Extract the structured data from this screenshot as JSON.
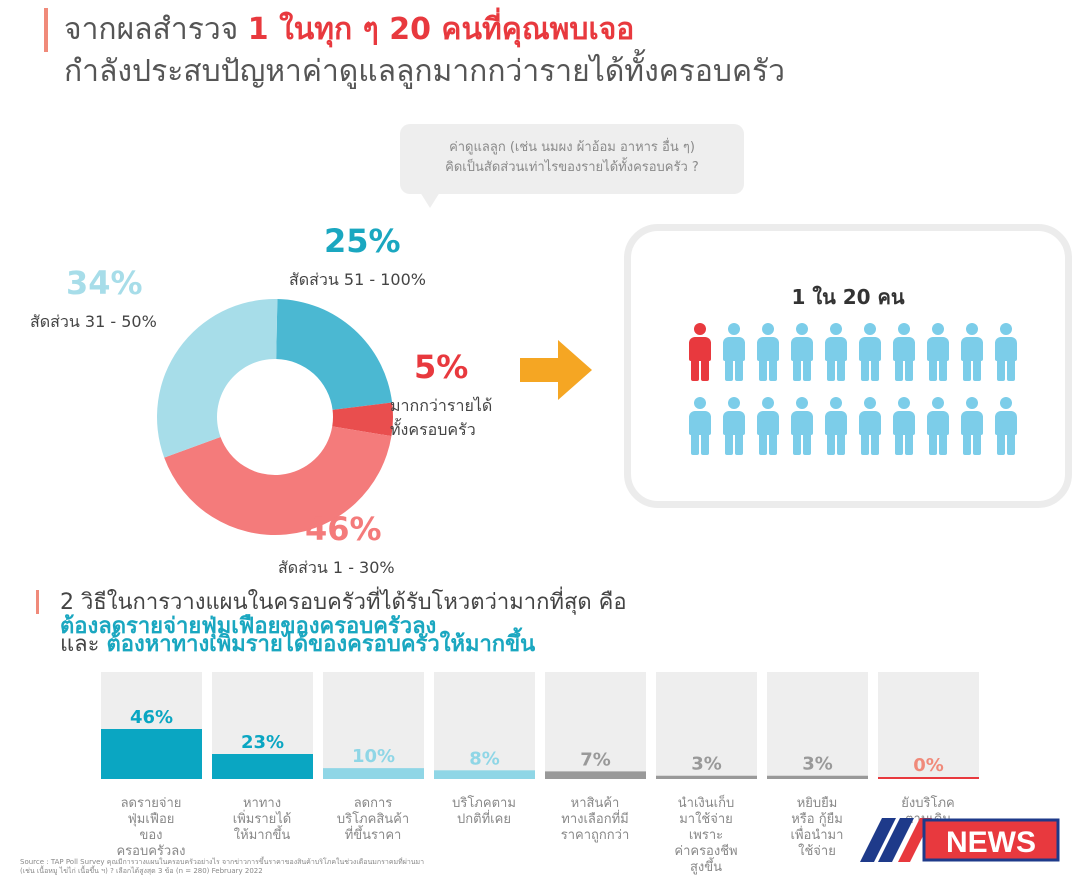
{
  "header": {
    "title_prefix": "จากผลสำรวจ",
    "title_highlight": "1 ในทุก ๆ 20 คนที่คุณพบเจอ",
    "subtitle": "กำลังประสบปัญหาค่าดูแลลูกมากกว่ารายได้ทั้งครอบครัว"
  },
  "question": {
    "line1": "ค่าดูแลลูก (เช่น นมผง ผ้าอ้อม อาหาร อื่น ๆ)",
    "line2": "คิดเป็นสัดส่วนเท่าไรของรายได้ทั้งครอบครัว ?"
  },
  "people": {
    "title": "1 ใน 20 คน",
    "total": 20,
    "highlighted": 1,
    "color_highlight": "#e8393e",
    "color_default": "#7ccde9"
  },
  "section2": {
    "line1": "2 วิธีในการวางแผนในครอบครัวที่ได้รับโหวตว่ามากที่สุด คือ",
    "line2": "ต้องลดรายจ่ายฟุ่มเฟือยของครอบครัวลง",
    "line3_prefix": "และ",
    "line3_highlight": "ต้องหาทางเพิ่มรายได้ของครอบครัวให้มากขึ้น"
  },
  "source": {
    "line1": "Source : TAP Poll Survey คุณมีการวางแผนในครอบครัวอย่างไร จากข่าวการขึ้นราคาของสินค้าบริโภคในช่วงเดือนมกราคมที่ผ่านมา",
    "line2": "(เช่น เนื้อหมู ไข่ไก่ เนื้อขึ้น ฯ) ? เลือกได้สูงสุด 3 ข้อ (n = 280) February 2022"
  },
  "logo": {
    "text": "NEWS",
    "color_brand": "#1e3a8a"
  },
  "chart_data": [
    {
      "type": "pie",
      "donut": true,
      "segments": [
        {
          "name": "สัดส่วน 51 - 100%",
          "value": 25,
          "label": "25%",
          "color": "#4bb8d2"
        },
        {
          "name": "มากกว่ารายได้ทั้งครอบครัว",
          "value": 5,
          "label": "5%",
          "color": "#e94e4e"
        },
        {
          "name": "สัดส่วน 1 - 30%",
          "value": 46,
          "label": "46%",
          "color": "#f47b7b"
        },
        {
          "name": "สัดส่วน 31 - 50%",
          "value": 34,
          "label": "34%",
          "color": "#a7dde9"
        }
      ],
      "label_colors": {
        "25": "#1aa7c0",
        "5": "#e8393e",
        "46": "#f47b7b",
        "34": "#a7dde9"
      }
    },
    {
      "type": "bar",
      "ylim": [
        0,
        46
      ],
      "categories": [
        "ลดรายจ่ายฟุ่มเฟือยของครอบครัวลง",
        "หาทางเพิ่มรายได้ให้มากขึ้น",
        "ลดการบริโภคสินค้าที่ขึ้นราคา",
        "บริโภคตามปกติที่เคย",
        "หาสินค้าทางเลือกที่มีราคาถูกกว่า",
        "นำเงินเก็บมาใช้จ่ายเพราะค่าครองชีพสูงขึ้น",
        "หยิบยืมหรือ กู้ยืมเพื่อนำมาใช้จ่าย",
        "ยังบริโภคตามเดิม"
      ],
      "values": [
        46,
        23,
        10,
        8,
        7,
        3,
        3,
        0
      ],
      "value_labels": [
        "46%",
        "23%",
        "10%",
        "8%",
        "7%",
        "3%",
        "3%",
        "0%"
      ],
      "caption_lines": [
        [
          "ลดรายจ่าย",
          "ฟุ่มเฟือย",
          "ของ",
          "ครอบครัวลง"
        ],
        [
          "หาทาง",
          "เพิ่มรายได้",
          "ให้มากขึ้น"
        ],
        [
          "ลดการ",
          "บริโภคสินค้า",
          "ที่ขึ้นราคา"
        ],
        [
          "บริโภคตาม",
          "ปกติที่เคย"
        ],
        [
          "หาสินค้า",
          "ทางเลือกที่มี",
          "ราคาถูกกว่า"
        ],
        [
          "นำเงินเก็บ",
          "มาใช้จ่าย",
          "เพราะ",
          "ค่าครองชีพ",
          "สูงขึ้น"
        ],
        [
          "หยิบยืม",
          "หรือ กู้ยืม",
          "เพื่อนำมา",
          "ใช้จ่าย"
        ],
        [
          "ยังบริโภค",
          "ตามเดิม"
        ]
      ],
      "bar_colors": [
        "#0aa6c2",
        "#0aa6c2",
        "#8fd6e6",
        "#8fd6e6",
        "#999999",
        "#999999",
        "#999999",
        "#e8393e"
      ],
      "label_colors": [
        "#0aa6c2",
        "#0aa6c2",
        "#8fd6e6",
        "#8fd6e6",
        "#999999",
        "#999999",
        "#999999",
        "#f08a7a"
      ],
      "background_color": "#eeeeee"
    }
  ]
}
